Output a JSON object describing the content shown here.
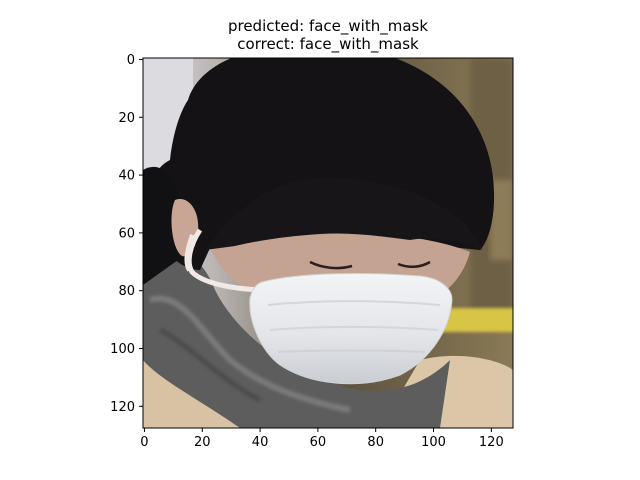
{
  "chart_data": {
    "type": "image",
    "title_lines": [
      "predicted: face_with_mask",
      "correct: face_with_mask"
    ],
    "image_subject": "Photo of a person with dark hair and bangs, eyes closed, wearing a white surgical face mask and a grey scarf over a beige coat",
    "image_width": 128,
    "image_height": 128,
    "xlim": [
      -0.5,
      127.5
    ],
    "ylim": [
      127.5,
      -0.5
    ],
    "xticks": [
      0,
      20,
      40,
      60,
      80,
      100,
      120
    ],
    "yticks": [
      0,
      20,
      40,
      60,
      80,
      100,
      120
    ],
    "xlabel": "",
    "ylabel": "",
    "grid": false,
    "colors": {
      "hair": "#141214",
      "mask": "#e9ebee",
      "scarf": "#5f5f5f",
      "coat": "#d9c3a6",
      "background_left": "#d7d5d9",
      "background_right": "#7c6c4a",
      "skin": "#c2a294",
      "yellow_rail": "#d8c445"
    }
  }
}
